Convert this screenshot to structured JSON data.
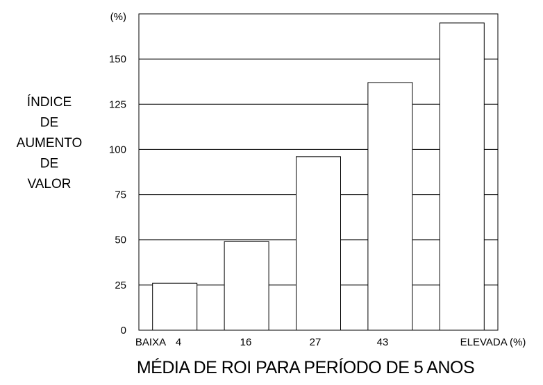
{
  "chart_data": {
    "type": "bar",
    "title": "",
    "ylabel_lines": [
      "ÍNDICE",
      "DE",
      "AUMENTO",
      "DE",
      "VALOR"
    ],
    "yunit": "(%)",
    "xlabel": "MÉDIA DE ROI PARA PERÍODO DE 5 ANOS",
    "x_tick_labels": [
      "BAIXA",
      "4",
      "16",
      "27",
      "43",
      "ELEVADA (%)"
    ],
    "categories": [
      "BAIXA–4",
      "4–16",
      "16–27",
      "27–43",
      "43–ELEVADA"
    ],
    "values": [
      26,
      49,
      96,
      137,
      170
    ],
    "ylim": [
      0,
      175
    ],
    "yticks": [
      0,
      25,
      50,
      75,
      100,
      125,
      150
    ],
    "grid": true,
    "bar_fill": "#ffffff",
    "bar_stroke": "#000000",
    "grid_color": "#000000"
  }
}
